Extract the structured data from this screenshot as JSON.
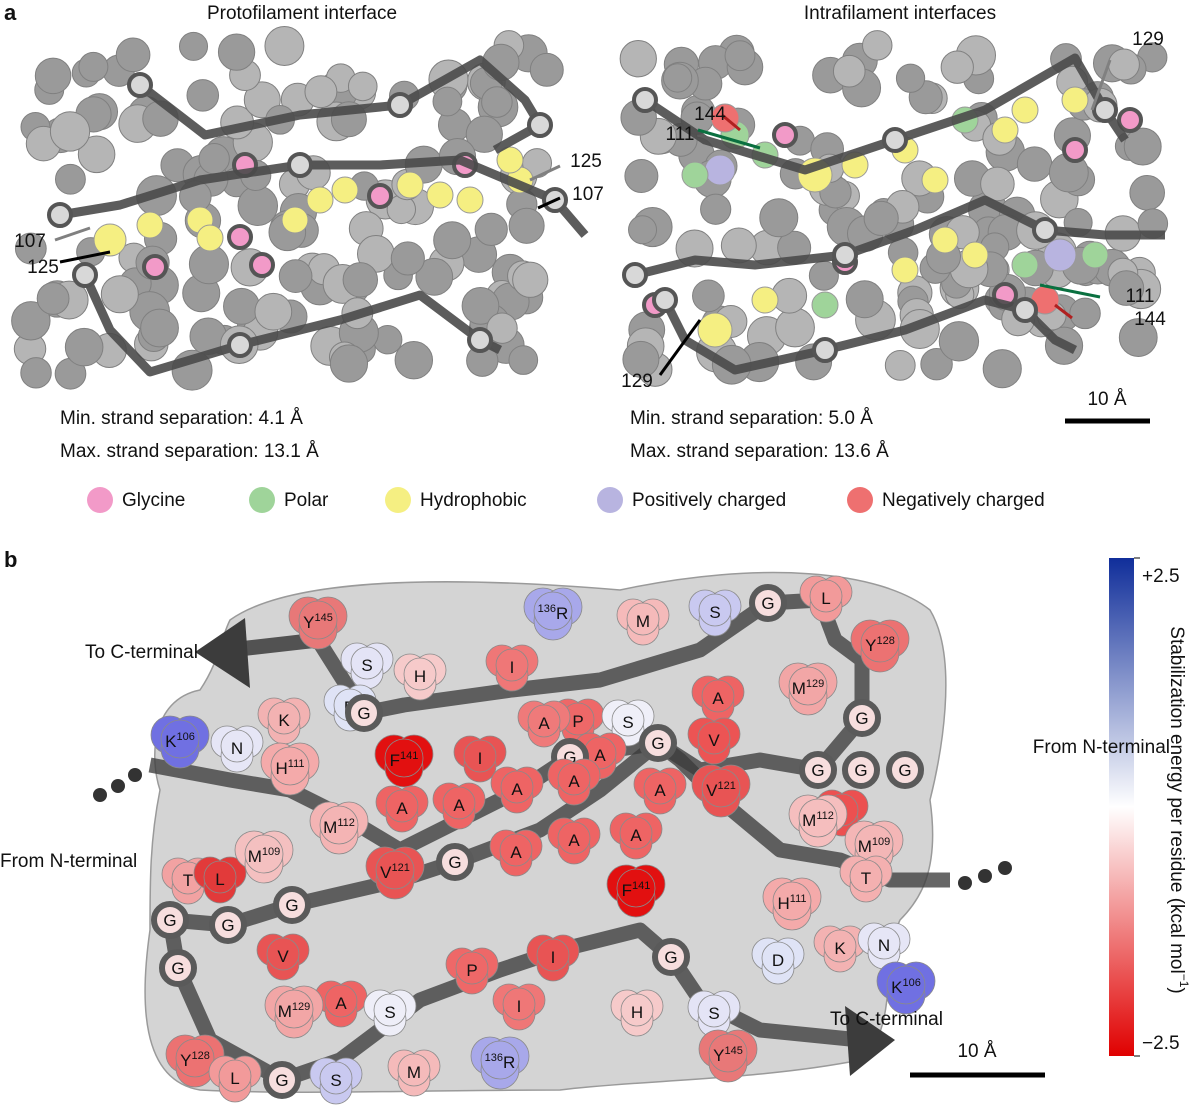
{
  "panel_a": {
    "label": "a",
    "left": {
      "title": "Protofilament interface",
      "min_sep": "Min. strand separation: 4.1 Å",
      "max_sep": "Max. strand separation: 13.1 Å",
      "annotations": [
        {
          "text": "125",
          "color": "#808080"
        },
        {
          "text": "107",
          "color": "#000000"
        },
        {
          "text": "107",
          "color": "#808080"
        },
        {
          "text": "125",
          "color": "#000000"
        }
      ]
    },
    "right": {
      "title": "Intrafilament interfaces",
      "min_sep": "Min. strand separation: 5.0 Å",
      "max_sep": "Max. strand separation: 13.6 Å",
      "annotations": [
        {
          "text": "129",
          "color": "#808080"
        },
        {
          "text": "144",
          "color": "#b02020"
        },
        {
          "text": "111",
          "color": "#0a7040"
        },
        {
          "text": "111",
          "color": "#0a7040"
        },
        {
          "text": "144",
          "color": "#b02020"
        },
        {
          "text": "129",
          "color": "#000000"
        }
      ]
    },
    "scale_bar": "10 Å",
    "legend": [
      {
        "name": "Glycine",
        "color": "#f29ac8"
      },
      {
        "name": "Polar",
        "color": "#9fd49a"
      },
      {
        "name": "Hydrophobic",
        "color": "#f5ef82"
      },
      {
        "name": "Positively charged",
        "color": "#b8b4e0"
      },
      {
        "name": "Negatively charged",
        "color": "#ee7070"
      }
    ]
  },
  "panel_b": {
    "label": "b",
    "annotations": [
      "To C-terminal",
      "From N-terminal",
      "From N-terminal",
      "To C-terminal"
    ],
    "scale_bar": "10 Å",
    "colorbar": {
      "title": "Stabilization energy per residue (kcal mol",
      "title_sup": "−1",
      "title_end": ")",
      "lim": [
        -2.5,
        2.5
      ],
      "ticks": [
        {
          "value": 2.5,
          "label": "+2.5"
        },
        {
          "value": -2.5,
          "label": "−2.5"
        }
      ],
      "colors": [
        "#e00000",
        "#ffffff",
        "#102e9a"
      ]
    },
    "residues": [
      {
        "aa": "Y",
        "sup": "145",
        "color": "#e87878"
      },
      {
        "aa": "R",
        "pre": "136",
        "color": "#a8a8ea"
      },
      {
        "aa": "M",
        "color": "#f5baba"
      },
      {
        "aa": "S",
        "color": "#c9c9f0"
      },
      {
        "aa": "G",
        "color": "#f7dede",
        "glycine": true
      },
      {
        "aa": "L",
        "color": "#f29a9a"
      },
      {
        "aa": "Y",
        "sup": "128",
        "color": "#ec7272"
      },
      {
        "aa": "S",
        "color": "#e4e4f6"
      },
      {
        "aa": "H",
        "color": "#f6caca"
      },
      {
        "aa": "I",
        "color": "#ef7777"
      },
      {
        "aa": "M",
        "sup": "129",
        "color": "#f2a6a6"
      },
      {
        "aa": "A",
        "color": "#ee6464"
      },
      {
        "aa": "D",
        "color": "#dfe3f6"
      },
      {
        "aa": "G",
        "color": "#f7dede",
        "glycine": true
      },
      {
        "aa": "P",
        "color": "#ee6868"
      },
      {
        "aa": "S",
        "color": "#efeff8"
      },
      {
        "aa": "V",
        "color": "#ec5454"
      },
      {
        "aa": "G",
        "color": "#f7dede",
        "glycine": true
      },
      {
        "aa": "K",
        "sup": "106",
        "color": "#7070e2"
      },
      {
        "aa": "N",
        "color": "#e6e6f6"
      },
      {
        "aa": "K",
        "color": "#f3b2b2"
      },
      {
        "aa": "H",
        "sup": "111",
        "color": "#f4aaaa"
      },
      {
        "aa": "F",
        "sup": "141",
        "color": "#e21010"
      },
      {
        "aa": "I",
        "color": "#e85454"
      },
      {
        "aa": "A",
        "color": "#ef7a7a"
      },
      {
        "aa": "A",
        "color": "#ee6464"
      },
      {
        "aa": "G",
        "color": "#f7dede",
        "glycine": true
      },
      {
        "aa": "G",
        "color": "#f7dede",
        "glycine": true
      },
      {
        "aa": "G",
        "color": "#f7dede",
        "glycine": true
      },
      {
        "aa": "G",
        "color": "#f7dede",
        "glycine": true
      },
      {
        "aa": "V",
        "sup": "121",
        "color": "#e85454"
      },
      {
        "aa": "L",
        "color": "#ec5050"
      },
      {
        "aa": "M",
        "sup": "109",
        "color": "#f4b6b6"
      },
      {
        "aa": "M",
        "sup": "112",
        "color": "#f5bebe"
      },
      {
        "aa": "T",
        "color": "#f4b0b0"
      },
      {
        "aa": "M",
        "sup": "112",
        "color": "#f4b4b4"
      },
      {
        "aa": "A",
        "color": "#ee6464"
      },
      {
        "aa": "A",
        "color": "#ee6464"
      },
      {
        "aa": "A",
        "color": "#ee6464"
      },
      {
        "aa": "A",
        "color": "#ee6464"
      },
      {
        "aa": "G",
        "color": "#f7dede",
        "glycine": true
      },
      {
        "aa": "A",
        "color": "#ee6464"
      },
      {
        "aa": "T",
        "color": "#f2a2a2"
      },
      {
        "aa": "L",
        "color": "#e23a3a"
      },
      {
        "aa": "M",
        "sup": "109",
        "color": "#f4c0c0"
      },
      {
        "aa": "V",
        "sup": "121",
        "color": "#e85454"
      },
      {
        "aa": "G",
        "color": "#f7dede",
        "glycine": true
      },
      {
        "aa": "A",
        "color": "#ee6464"
      },
      {
        "aa": "A",
        "color": "#ee6464"
      },
      {
        "aa": "G",
        "color": "#f7dede",
        "glycine": true
      },
      {
        "aa": "G",
        "color": "#f7dede",
        "glycine": true
      },
      {
        "aa": "G",
        "color": "#f7dede",
        "glycine": true
      },
      {
        "aa": "V",
        "color": "#e85454"
      },
      {
        "aa": "A",
        "color": "#ee6464"
      },
      {
        "aa": "S",
        "color": "#eeeef8"
      },
      {
        "aa": "M",
        "sup": "129",
        "color": "#f2a6a6"
      },
      {
        "aa": "G",
        "color": "#f7dede",
        "glycine": true
      },
      {
        "aa": "Y",
        "sup": "128",
        "color": "#ec7272"
      },
      {
        "aa": "L",
        "color": "#f29a9a"
      },
      {
        "aa": "G",
        "color": "#f7dede",
        "glycine": true
      },
      {
        "aa": "S",
        "color": "#c9c9f0"
      },
      {
        "aa": "M",
        "color": "#f5baba"
      },
      {
        "aa": "R",
        "pre": "136",
        "color": "#a8a8ea"
      },
      {
        "aa": "P",
        "color": "#ee6868"
      },
      {
        "aa": "I",
        "color": "#ef7777"
      },
      {
        "aa": "I",
        "color": "#e85454"
      },
      {
        "aa": "F",
        "sup": "141",
        "color": "#e21010"
      },
      {
        "aa": "A",
        "color": "#ee6464"
      },
      {
        "aa": "H",
        "sup": "111",
        "color": "#f4aaaa"
      },
      {
        "aa": "K",
        "color": "#f3b2b2"
      },
      {
        "aa": "N",
        "color": "#e6e6f6"
      },
      {
        "aa": "K",
        "sup": "106",
        "color": "#7070e2"
      },
      {
        "aa": "G",
        "color": "#f7dede",
        "glycine": true
      },
      {
        "aa": "D",
        "color": "#dfe3f6"
      },
      {
        "aa": "H",
        "color": "#f6caca"
      },
      {
        "aa": "S",
        "color": "#e4e4f6"
      },
      {
        "aa": "Y",
        "sup": "145",
        "color": "#e87878"
      }
    ]
  }
}
